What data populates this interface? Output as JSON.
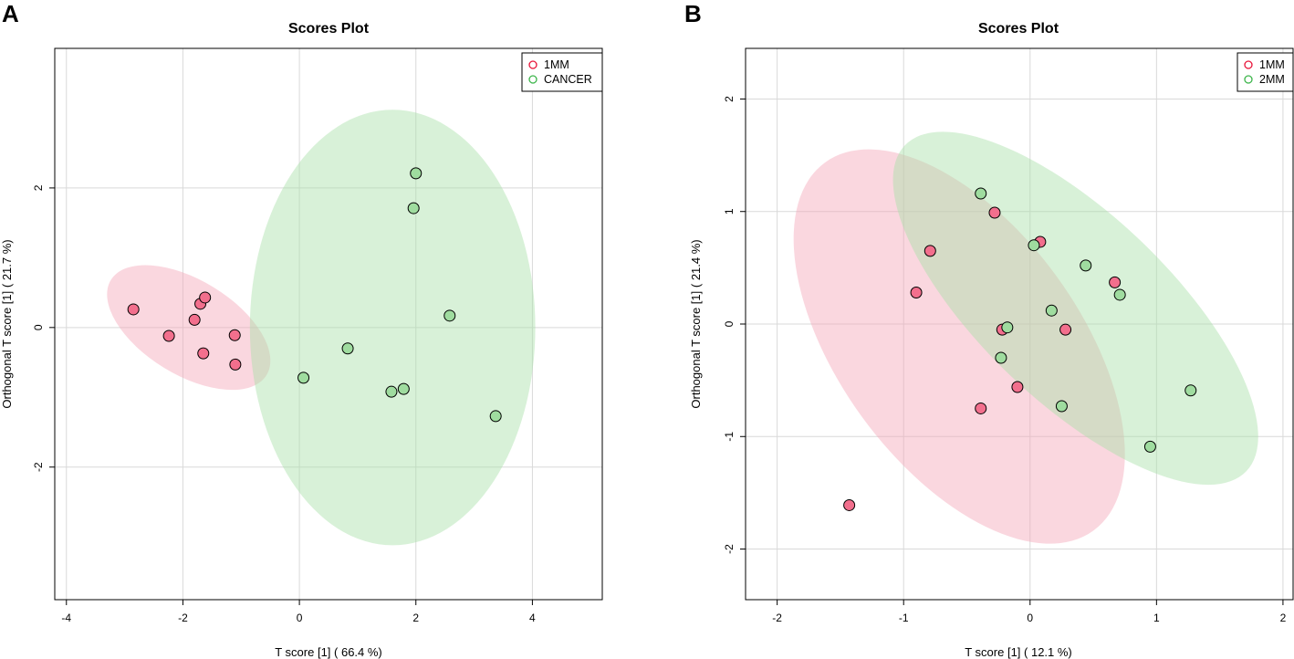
{
  "chart_data": [
    {
      "panel_label": "A",
      "type": "scatter",
      "title": "Scores Plot",
      "xlabel": "T score [1] ( 66.4 %)",
      "ylabel": "Orthogonal T score [1] ( 21.7 %)",
      "xlim": [
        -4.2,
        5.2
      ],
      "ylim": [
        -3.9,
        4.0
      ],
      "xticks": [
        -4,
        -2,
        0,
        2,
        4
      ],
      "yticks": [
        -2,
        0,
        2
      ],
      "grid": true,
      "legend_position": "top-right",
      "series": [
        {
          "name": "1MM",
          "color": "#e8153a",
          "fill": "#f26f8d",
          "ellipse_fill": "#f4a7b9",
          "ellipse": {
            "cx": -1.9,
            "cy": 0.0,
            "rx": 1.5,
            "ry": 0.7,
            "angle": -27
          },
          "points": [
            {
              "x": -2.85,
              "y": 0.26
            },
            {
              "x": -1.7,
              "y": 0.34
            },
            {
              "x": -1.62,
              "y": 0.43
            },
            {
              "x": -1.8,
              "y": 0.11
            },
            {
              "x": -2.24,
              "y": -0.12
            },
            {
              "x": -1.11,
              "y": -0.11
            },
            {
              "x": -1.65,
              "y": -0.37
            },
            {
              "x": -1.1,
              "y": -0.53
            }
          ]
        },
        {
          "name": "CANCER",
          "color": "#3cb54a",
          "fill": "#9fdc9f",
          "ellipse_fill": "#a9dfa9",
          "ellipse": {
            "cx": 1.6,
            "cy": 0.0,
            "rx": 2.45,
            "ry": 3.12,
            "angle": 0
          },
          "points": [
            {
              "x": 2.0,
              "y": 2.21
            },
            {
              "x": 1.96,
              "y": 1.71
            },
            {
              "x": 2.58,
              "y": 0.17
            },
            {
              "x": 0.83,
              "y": -0.3
            },
            {
              "x": 0.07,
              "y": -0.72
            },
            {
              "x": 1.58,
              "y": -0.92
            },
            {
              "x": 1.79,
              "y": -0.88
            },
            {
              "x": 3.37,
              "y": -1.27
            }
          ]
        }
      ]
    },
    {
      "panel_label": "B",
      "type": "scatter",
      "title": "Scores Plot",
      "xlabel": "T score [1] ( 12.1 %)",
      "ylabel": "Orthogonal T score [1] ( 21.4 %)",
      "xlim": [
        -2.25,
        2.08
      ],
      "ylim": [
        -2.45,
        2.45
      ],
      "xticks": [
        -2,
        -1,
        0,
        1,
        2
      ],
      "yticks": [
        -2,
        -1,
        0,
        1,
        2
      ],
      "grid": true,
      "legend_position": "top-right",
      "series": [
        {
          "name": "1MM",
          "color": "#e8153a",
          "fill": "#f26f8d",
          "ellipse_fill": "#f4a7b9",
          "ellipse": {
            "cx": -0.56,
            "cy": -0.2,
            "rx": 1.95,
            "ry": 0.98,
            "angle": -57
          },
          "points": [
            {
              "x": -0.28,
              "y": 0.99
            },
            {
              "x": -0.79,
              "y": 0.65
            },
            {
              "x": 0.08,
              "y": 0.73
            },
            {
              "x": -0.9,
              "y": 0.28
            },
            {
              "x": 0.67,
              "y": 0.37
            },
            {
              "x": -0.22,
              "y": -0.05
            },
            {
              "x": 0.28,
              "y": -0.05
            },
            {
              "x": -0.1,
              "y": -0.56
            },
            {
              "x": -0.39,
              "y": -0.75
            },
            {
              "x": -1.43,
              "y": -1.61
            }
          ]
        },
        {
          "name": "2MM",
          "color": "#3cb54a",
          "fill": "#9fdc9f",
          "ellipse_fill": "#a9dfa9",
          "ellipse": {
            "cx": 0.36,
            "cy": 0.14,
            "rx": 1.98,
            "ry": 0.78,
            "angle": -47
          },
          "points": [
            {
              "x": -0.39,
              "y": 1.16
            },
            {
              "x": 0.03,
              "y": 0.7
            },
            {
              "x": 0.44,
              "y": 0.52
            },
            {
              "x": 0.71,
              "y": 0.26
            },
            {
              "x": 0.17,
              "y": 0.12
            },
            {
              "x": -0.18,
              "y": -0.03
            },
            {
              "x": -0.23,
              "y": -0.3
            },
            {
              "x": 0.25,
              "y": -0.73
            },
            {
              "x": 1.27,
              "y": -0.59
            },
            {
              "x": 0.95,
              "y": -1.09
            }
          ]
        }
      ]
    }
  ]
}
